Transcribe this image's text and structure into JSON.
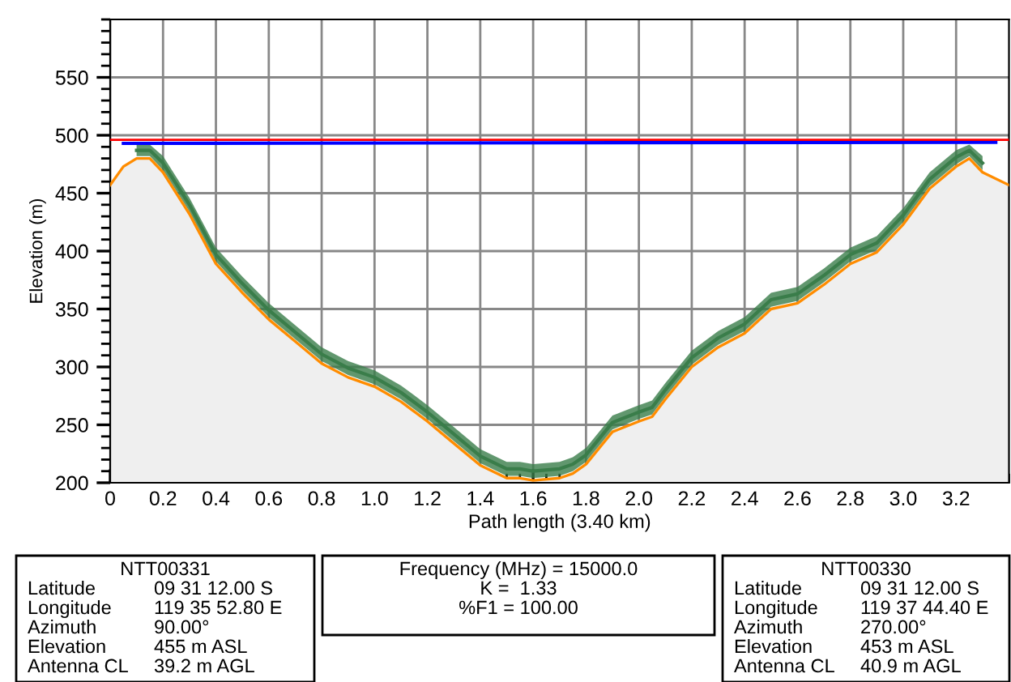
{
  "chart_data": {
    "type": "area",
    "xlabel": "Path length (3.40 km)",
    "ylabel": "Elevation (m)",
    "xlim": [
      0,
      3.4
    ],
    "ylim": [
      200,
      600
    ],
    "xticks": [
      {
        "value": 0,
        "label": "0"
      },
      0.2,
      0.4,
      0.6,
      0.8,
      {
        "value": 1,
        "label": "1.0"
      },
      1.2,
      1.4,
      1.6,
      1.8,
      {
        "value": 2,
        "label": "2.0"
      },
      2.2,
      2.4,
      2.6,
      2.8,
      {
        "value": 3,
        "label": "3.0"
      },
      3.2
    ],
    "yticks": [
      200,
      250,
      300,
      350,
      400,
      450,
      500,
      550
    ],
    "grid": true,
    "legend": false,
    "ref_lines": [
      {
        "axis": "y",
        "value": 496,
        "color": "#ff0000"
      }
    ],
    "series": [
      {
        "type": "area",
        "color": "#ff8c00",
        "x": [
          0,
          0.05,
          0.1,
          0.15,
          0.2,
          0.3,
          0.4,
          0.5,
          0.6,
          0.7,
          0.8,
          0.9,
          1.0,
          1.1,
          1.2,
          1.3,
          1.4,
          1.5,
          1.55,
          1.6,
          1.7,
          1.75,
          1.8,
          1.9,
          2.0,
          2.05,
          2.1,
          2.2,
          2.3,
          2.4,
          2.5,
          2.6,
          2.7,
          2.8,
          2.9,
          3.0,
          3.1,
          3.2,
          3.25,
          3.3,
          3.4
        ],
        "values": [
          457,
          473,
          480,
          480,
          468,
          432,
          389,
          364,
          341,
          322,
          303,
          291,
          283,
          270,
          253,
          234,
          215,
          204,
          204,
          202,
          204,
          208,
          216,
          244,
          253,
          257,
          272,
          300,
          317,
          329,
          350,
          355,
          371,
          389,
          399,
          423,
          454,
          473,
          480,
          468,
          457
        ]
      },
      {
        "type": "line",
        "color": "#3a7d4a",
        "x": [
          0.1,
          0.15,
          0.2,
          0.3,
          0.4,
          0.5,
          0.6,
          0.7,
          0.8,
          0.9,
          1.0,
          1.1,
          1.2,
          1.3,
          1.4,
          1.5,
          1.55,
          1.6,
          1.7,
          1.75,
          1.8,
          1.9,
          2.0,
          2.05,
          2.1,
          2.2,
          2.3,
          2.4,
          2.5,
          2.6,
          2.7,
          2.8,
          2.9,
          3.0,
          3.1,
          3.2,
          3.25,
          3.3
        ],
        "values": [
          487,
          487,
          476,
          440,
          397,
          372,
          349,
          330,
          311,
          299,
          291,
          278,
          261,
          242,
          223,
          212,
          212,
          210,
          212,
          216,
          224,
          252,
          261,
          265,
          280,
          308,
          325,
          337,
          358,
          363,
          379,
          397,
          407,
          431,
          462,
          481,
          487,
          476
        ],
        "lower": [
          482,
          482,
          470,
          434,
          391,
          366,
          343,
          324,
          305,
          293,
          285,
          272,
          255,
          236,
          217,
          206,
          206,
          204,
          206,
          210,
          218,
          246,
          255,
          259,
          274,
          302,
          319,
          331,
          352,
          357,
          373,
          391,
          401,
          425,
          456,
          475,
          482,
          470
        ],
        "upper": [
          492,
          492,
          482,
          446,
          403,
          378,
          355,
          336,
          317,
          305,
          297,
          284,
          267,
          248,
          229,
          218,
          218,
          216,
          218,
          222,
          230,
          258,
          267,
          271,
          286,
          314,
          331,
          343,
          364,
          369,
          385,
          403,
          413,
          437,
          468,
          487,
          492,
          482
        ]
      },
      {
        "type": "line",
        "color": "#0000ff",
        "x": [
          0.05,
          3.35
        ],
        "values": [
          493,
          494
        ]
      }
    ],
    "annotations": [
      "NTT00331\nLatitude\t09 31 12.00 S\nLongitude\t119 35 52.80 E\nAzimuth\t90.00°\nElevation\t455 m ASL\nAntenna CL\t39.2 m AGL",
      "Frequency (MHz) = 15000.0\nK =  1.33\n%F1 = 100.00",
      "NTT00330\nLatitude\t09 31 12.00 S\nLongitude\t119 37 44.40 E\nAzimuth\t270.00°\nElevation\t453 m ASL\nAntenna CL\t40.9 m AGL"
    ]
  }
}
